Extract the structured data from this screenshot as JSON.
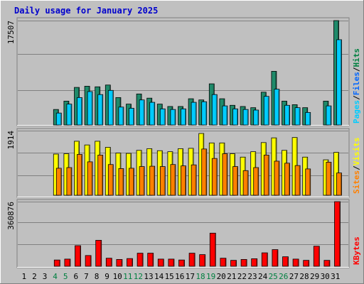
{
  "chart_data": {
    "type": "bar",
    "title": "Daily usage for January 2025",
    "categories": [
      "1",
      "2",
      "3",
      "4",
      "5",
      "6",
      "7",
      "8",
      "9",
      "10",
      "11",
      "12",
      "13",
      "14",
      "15",
      "16",
      "17",
      "18",
      "19",
      "20",
      "21",
      "22",
      "23",
      "24",
      "25",
      "26",
      "27",
      "28",
      "29",
      "30",
      "31"
    ],
    "weekend_days": [
      "4",
      "5",
      "11",
      "12",
      "18",
      "19",
      "25",
      "26"
    ],
    "panels": [
      {
        "id": "top",
        "ymax_label": "17507",
        "ymax": 17507,
        "legend": [
          {
            "label": "Pages",
            "color": "#00ccff"
          },
          {
            "label": "Files",
            "color": "#0066ff"
          },
          {
            "label": "Hits",
            "color": "#008040"
          }
        ],
        "series": [
          {
            "name": "Hits",
            "color": "#1f8a6a",
            "values": [
              null,
              null,
              null,
              2600,
              4000,
              6300,
              6500,
              6400,
              6700,
              4600,
              3500,
              5200,
              4500,
              3500,
              3100,
              3100,
              4400,
              4200,
              6900,
              4400,
              3300,
              3100,
              2900,
              5500,
              9000,
              4000,
              3400,
              2900,
              null,
              4000,
              17507
            ]
          },
          {
            "name": "Pages",
            "color": "#00ccff",
            "values": [
              null,
              null,
              null,
              2000,
              3500,
              4600,
              5600,
              5100,
              5800,
              3000,
              2800,
              4200,
              3800,
              2700,
              2600,
              2700,
              3800,
              3900,
              5100,
              3200,
              2700,
              2600,
              2500,
              4800,
              6000,
              3300,
              2900,
              2100,
              null,
              3200,
              14300
            ]
          }
        ]
      },
      {
        "id": "middle",
        "ymax_label": "1914",
        "ymax": 1914,
        "legend": [
          {
            "label": "Sites",
            "color": "#ff8000"
          },
          {
            "label": "Visits",
            "color": "#ffff00"
          }
        ],
        "series": [
          {
            "name": "Visits",
            "color": "#ffff00",
            "values": [
              null,
              null,
              null,
              1220,
              1230,
              1600,
              1490,
              1600,
              1420,
              1250,
              1240,
              1330,
              1380,
              1320,
              1290,
              1380,
              1390,
              1830,
              1550,
              1550,
              1230,
              1130,
              1290,
              1560,
              1700,
              1330,
              1710,
              1130,
              null,
              1050,
              1270
            ]
          },
          {
            "name": "Sites",
            "color": "#ff8000",
            "values": [
              null,
              null,
              null,
              800,
              820,
              1210,
              990,
              1190,
              910,
              790,
              800,
              850,
              860,
              850,
              910,
              870,
              900,
              1370,
              1090,
              1230,
              850,
              730,
              820,
              1190,
              1010,
              950,
              880,
              780,
              null,
              980,
              660
            ]
          }
        ]
      },
      {
        "id": "bottom",
        "ymax_label": "360876",
        "ymax": 360876,
        "legend": [
          {
            "label": "KBytes",
            "color": "#ff0000"
          }
        ],
        "series": [
          {
            "name": "KBytes",
            "color": "#ff0000",
            "values": [
              null,
              null,
              null,
              35000,
              40000,
              115000,
              60000,
              145000,
              45000,
              38000,
              43000,
              73000,
              73000,
              40000,
              40000,
              35000,
              73000,
              65000,
              185000,
              45000,
              33000,
              38000,
              42000,
              75000,
              93000,
              53000,
              40000,
              33000,
              112000,
              33000,
              360876
            ]
          }
        ]
      }
    ]
  }
}
